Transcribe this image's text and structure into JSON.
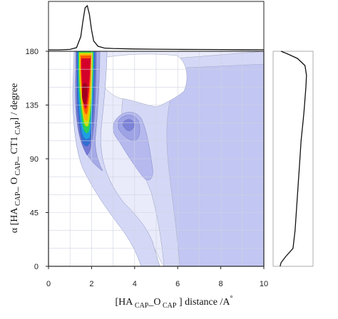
{
  "chart_data": {
    "type": "heatmap",
    "title": "",
    "xlabel": {
      "parts": [
        "[HA",
        " CAP",
        "_O",
        " CAP",
        " ] distance /A",
        "°"
      ]
    },
    "ylabel": {
      "parts": [
        "α [HA",
        " CAP",
        "_ O",
        " CAP",
        "_ CT1",
        " CAP",
        "] / degree"
      ]
    },
    "xlim": [
      0,
      10
    ],
    "ylim": [
      0,
      180
    ],
    "x_ticks": [
      0,
      2,
      4,
      6,
      8,
      10
    ],
    "y_ticks": [
      0,
      45,
      90,
      135,
      180
    ],
    "grid": true,
    "density_peaks": [
      {
        "x": 1.8,
        "y": 140,
        "level": "max"
      },
      {
        "x": 3.8,
        "y": 118,
        "level": "secondary"
      }
    ],
    "contour_colors": [
      "#ffffff",
      "#e9ebfb",
      "#d4d8f6",
      "#bdc2f0",
      "#a6abe8",
      "#8f93e0",
      "#757ad6",
      "#5d63c9",
      "#2f6fd4",
      "#1f9fe0",
      "#2bcf5a",
      "#c9e200",
      "#ffb000",
      "#ff5a00",
      "#d4002a",
      "#a0001c"
    ],
    "marginal_x": {
      "x": [
        0,
        0.5,
        1.0,
        1.3,
        1.5,
        1.6,
        1.7,
        1.8,
        1.9,
        2.0,
        2.1,
        2.3,
        2.6,
        3.0,
        4.0,
        5.0,
        6.0,
        7.0,
        8.0,
        9.0,
        10.0
      ],
      "density": [
        0,
        0,
        0.01,
        0.05,
        0.3,
        0.65,
        0.95,
        1.0,
        0.8,
        0.45,
        0.2,
        0.08,
        0.04,
        0.03,
        0.02,
        0.015,
        0.01,
        0.008,
        0.006,
        0.004,
        0.002
      ]
    },
    "marginal_y": {
      "y": [
        0,
        3,
        8,
        15,
        30,
        45,
        60,
        75,
        90,
        105,
        120,
        130,
        140,
        150,
        160,
        168,
        174,
        178,
        180
      ],
      "density": [
        0.02,
        0.05,
        0.2,
        0.45,
        0.52,
        0.56,
        0.6,
        0.64,
        0.68,
        0.72,
        0.78,
        0.82,
        0.85,
        0.88,
        0.9,
        0.85,
        0.6,
        0.25,
        0.05
      ]
    }
  }
}
